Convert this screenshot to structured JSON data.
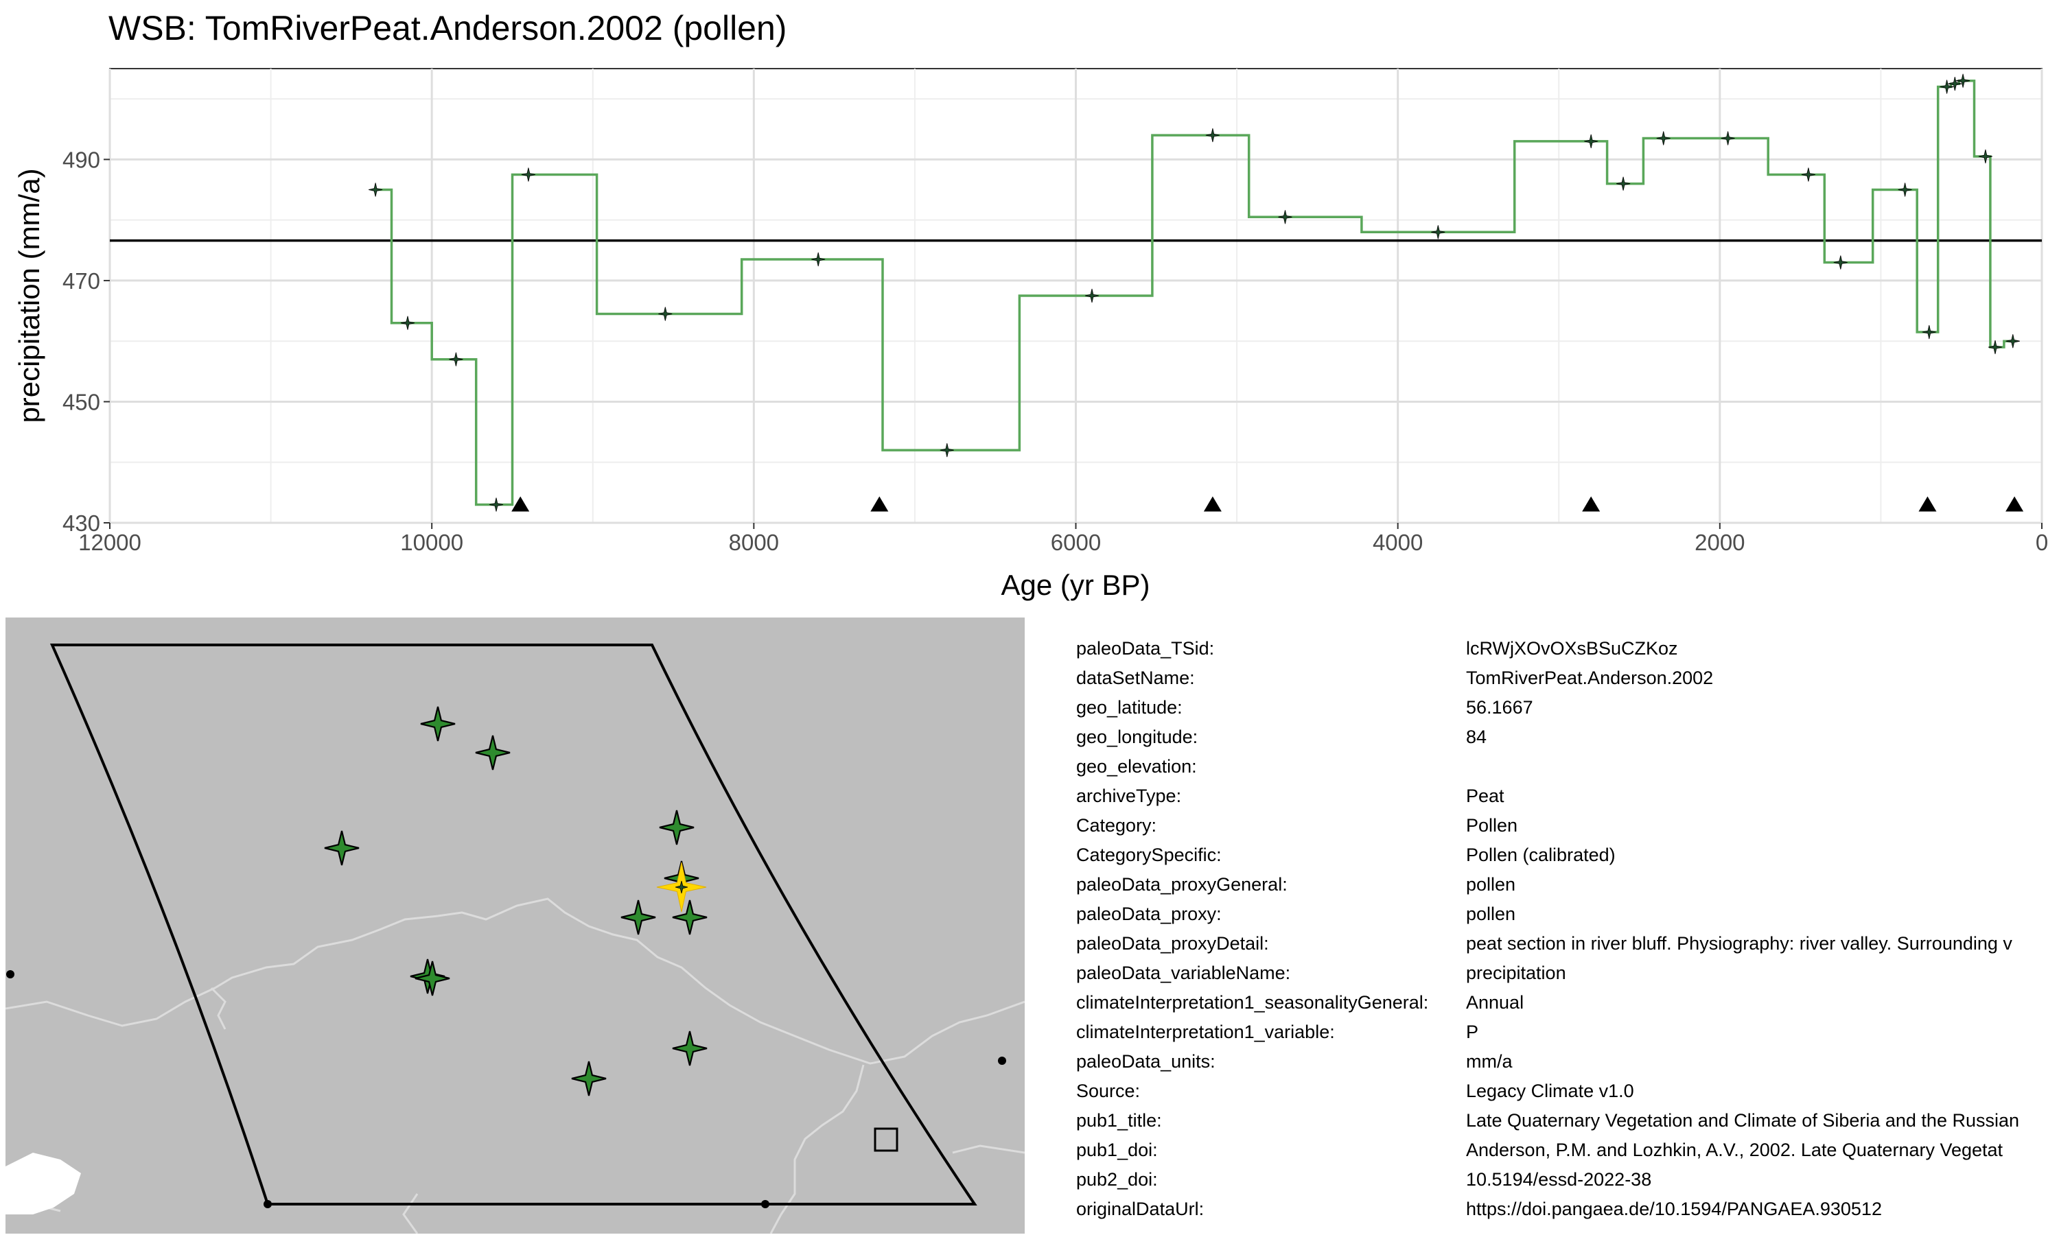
{
  "chart_data": {
    "type": "line",
    "title": "WSB: TomRiverPeat.Anderson.2002 (pollen)",
    "xlabel": "Age (yr BP)",
    "ylabel": "precipitation (mm/a)",
    "xlim": [
      12000,
      0
    ],
    "ylim": [
      430,
      505
    ],
    "x_ticks": [
      12000,
      10000,
      8000,
      6000,
      4000,
      2000,
      0
    ],
    "y_ticks": [
      430,
      450,
      470,
      490
    ],
    "grid": true,
    "x_reversed": true,
    "mean_line": 476.6,
    "step_line_color": "#5aa75a",
    "point_color": "#1e4d2b",
    "series": [
      {
        "x": [
          10350,
          10150,
          9850,
          9600,
          9400,
          8550,
          7600,
          6800,
          5900,
          5150,
          4700,
          3750,
          2800,
          2600,
          2350,
          1950,
          1450,
          1250,
          850,
          700,
          590,
          540,
          490,
          350,
          290,
          180
        ],
        "y": [
          485,
          463,
          457,
          433,
          487.5,
          464.5,
          473.5,
          442,
          467.5,
          494,
          480.5,
          478,
          493,
          486,
          493.5,
          493.5,
          487.5,
          473,
          485,
          461.5,
          502,
          502.5,
          503,
          490.5,
          459,
          460
        ]
      }
    ],
    "markers": {
      "shape": "triangle",
      "y": 433,
      "x": [
        9450,
        7220,
        5150,
        2800,
        710,
        170
      ]
    }
  },
  "map": {
    "background": "#bebebe",
    "border_color": "#dcdcdc",
    "site_color": "#2e8b2e",
    "highlight_color": "#ffd700"
  },
  "metadata": [
    {
      "key": "paleoData_TSid:",
      "value": "lcRWjXOvOXsBSuCZKoz"
    },
    {
      "key": "dataSetName:",
      "value": "TomRiverPeat.Anderson.2002"
    },
    {
      "key": "geo_latitude:",
      "value": "56.1667"
    },
    {
      "key": "geo_longitude:",
      "value": "84"
    },
    {
      "key": "geo_elevation:",
      "value": ""
    },
    {
      "key": "archiveType:",
      "value": "Peat"
    },
    {
      "key": "Category:",
      "value": "Pollen"
    },
    {
      "key": "CategorySpecific:",
      "value": "Pollen (calibrated)"
    },
    {
      "key": "paleoData_proxyGeneral:",
      "value": "pollen"
    },
    {
      "key": "paleoData_proxy:",
      "value": "pollen"
    },
    {
      "key": "paleoData_proxyDetail:",
      "value": "peat section in river bluff. Physiography: river valley. Surrounding v"
    },
    {
      "key": "paleoData_variableName:",
      "value": "precipitation"
    },
    {
      "key": "climateInterpretation1_seasonalityGeneral:",
      "value": "Annual"
    },
    {
      "key": "climateInterpretation1_variable:",
      "value": "P"
    },
    {
      "key": "paleoData_units:",
      "value": "mm/a"
    },
    {
      "key": "Source:",
      "value": "Legacy Climate v1.0"
    },
    {
      "key": "pub1_title:",
      "value": "Late Quaternary Vegetation and Climate of Siberia and the Russian"
    },
    {
      "key": "pub1_doi:",
      "value": "Anderson, P.M. and Lozhkin, A.V., 2002. Late Quaternary Vegetat"
    },
    {
      "key": "pub2_doi:",
      "value": "10.5194/essd-2022-38"
    },
    {
      "key": "originalDataUrl:",
      "value": "https://doi.pangaea.de/10.1594/PANGAEA.930512"
    }
  ]
}
